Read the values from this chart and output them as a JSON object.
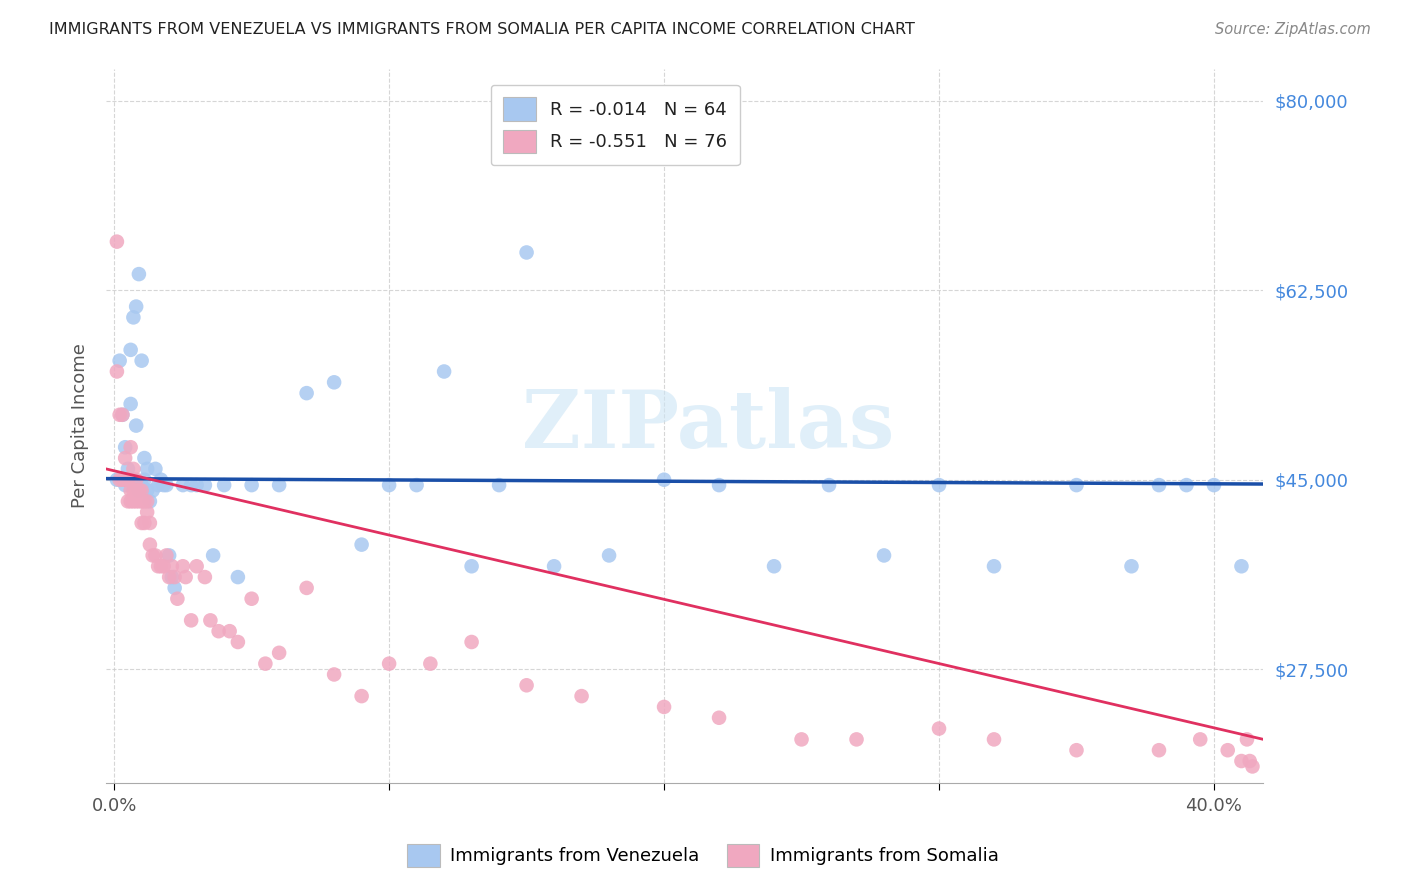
{
  "title": "IMMIGRANTS FROM VENEZUELA VS IMMIGRANTS FROM SOMALIA PER CAPITA INCOME CORRELATION CHART",
  "source": "Source: ZipAtlas.com",
  "ylabel": "Per Capita Income",
  "ytick_labels": [
    "$27,500",
    "$45,000",
    "$62,500",
    "$80,000"
  ],
  "ytick_values": [
    27500,
    45000,
    62500,
    80000
  ],
  "ymin": 17000,
  "ymax": 83000,
  "xmin": -0.003,
  "xmax": 0.418,
  "legend_r_venezuela": "-0.014",
  "legend_n_venezuela": "64",
  "legend_r_somalia": "-0.551",
  "legend_n_somalia": "76",
  "color_venezuela": "#a8c8f0",
  "color_somalia": "#f0a8c0",
  "trendline_venezuela_color": "#1a4fa8",
  "trendline_somalia_color": "#e03060",
  "watermark": "ZIPatlas",
  "venezuela_x": [
    0.001,
    0.002,
    0.003,
    0.004,
    0.004,
    0.005,
    0.005,
    0.006,
    0.006,
    0.007,
    0.007,
    0.008,
    0.008,
    0.009,
    0.009,
    0.01,
    0.01,
    0.011,
    0.011,
    0.012,
    0.012,
    0.013,
    0.014,
    0.015,
    0.016,
    0.017,
    0.018,
    0.019,
    0.02,
    0.021,
    0.022,
    0.025,
    0.028,
    0.03,
    0.033,
    0.036,
    0.04,
    0.045,
    0.05,
    0.06,
    0.07,
    0.08,
    0.09,
    0.1,
    0.11,
    0.12,
    0.13,
    0.14,
    0.15,
    0.16,
    0.18,
    0.2,
    0.22,
    0.24,
    0.26,
    0.28,
    0.3,
    0.32,
    0.35,
    0.37,
    0.38,
    0.39,
    0.4,
    0.41
  ],
  "venezuela_y": [
    45000,
    56000,
    51000,
    48000,
    44500,
    46000,
    45000,
    57000,
    52000,
    60000,
    45000,
    61000,
    50000,
    64000,
    44000,
    56000,
    44500,
    47000,
    45000,
    46000,
    44000,
    43000,
    44000,
    46000,
    44500,
    45000,
    44500,
    44500,
    38000,
    36000,
    35000,
    44500,
    44500,
    44500,
    44500,
    38000,
    44500,
    36000,
    44500,
    44500,
    53000,
    54000,
    39000,
    44500,
    44500,
    55000,
    37000,
    44500,
    66000,
    37000,
    38000,
    45000,
    44500,
    37000,
    44500,
    38000,
    44500,
    37000,
    44500,
    37000,
    44500,
    44500,
    44500,
    37000
  ],
  "somalia_x": [
    0.001,
    0.001,
    0.002,
    0.002,
    0.003,
    0.003,
    0.004,
    0.004,
    0.005,
    0.005,
    0.005,
    0.006,
    0.006,
    0.006,
    0.007,
    0.007,
    0.007,
    0.008,
    0.008,
    0.008,
    0.009,
    0.009,
    0.009,
    0.01,
    0.01,
    0.01,
    0.011,
    0.011,
    0.012,
    0.012,
    0.013,
    0.013,
    0.014,
    0.015,
    0.016,
    0.017,
    0.018,
    0.019,
    0.02,
    0.021,
    0.022,
    0.023,
    0.025,
    0.026,
    0.028,
    0.03,
    0.033,
    0.035,
    0.038,
    0.042,
    0.045,
    0.05,
    0.055,
    0.06,
    0.07,
    0.08,
    0.09,
    0.1,
    0.115,
    0.13,
    0.15,
    0.17,
    0.2,
    0.22,
    0.25,
    0.27,
    0.3,
    0.32,
    0.35,
    0.38,
    0.395,
    0.405,
    0.41,
    0.412,
    0.413,
    0.414
  ],
  "somalia_y": [
    55000,
    67000,
    45000,
    51000,
    45000,
    51000,
    45000,
    47000,
    43000,
    45000,
    45000,
    43000,
    44000,
    48000,
    44000,
    43000,
    46000,
    44000,
    43000,
    45000,
    44000,
    44000,
    43000,
    44000,
    43000,
    41000,
    43000,
    41000,
    43000,
    42000,
    41000,
    39000,
    38000,
    38000,
    37000,
    37000,
    37000,
    38000,
    36000,
    37000,
    36000,
    34000,
    37000,
    36000,
    32000,
    37000,
    36000,
    32000,
    31000,
    31000,
    30000,
    34000,
    28000,
    29000,
    35000,
    27000,
    25000,
    28000,
    28000,
    30000,
    26000,
    25000,
    24000,
    23000,
    21000,
    21000,
    22000,
    21000,
    20000,
    20000,
    21000,
    20000,
    19000,
    21000,
    19000,
    18500
  ],
  "vz_trend_x": [
    -0.003,
    0.418
  ],
  "vz_trend_y": [
    45100,
    44600
  ],
  "so_trend_x": [
    -0.003,
    0.418
  ],
  "so_trend_y": [
    46000,
    21000
  ]
}
